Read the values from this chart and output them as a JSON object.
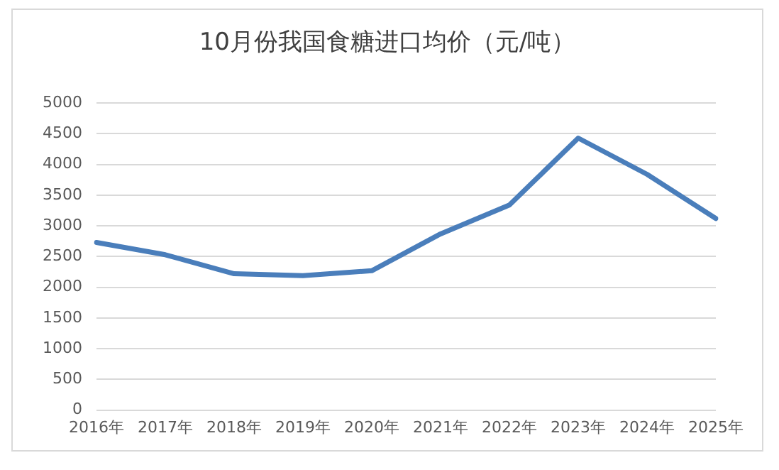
{
  "chart_data": {
    "type": "line",
    "title": "10月份我国食糖进口均价（元/吨）",
    "categories": [
      "2016年",
      "2017年",
      "2018年",
      "2019年",
      "2020年",
      "2021年",
      "2022年",
      "2023年",
      "2024年",
      "2025年"
    ],
    "series": [
      {
        "color": "#4a7ebb",
        "values": [
          2730,
          2530,
          2220,
          2190,
          2270,
          2870,
          3340,
          4430,
          3840,
          3120
        ]
      }
    ],
    "ylim": [
      0,
      5000
    ],
    "yticks": [
      0,
      500,
      1000,
      1500,
      2000,
      2500,
      3000,
      3500,
      4000,
      4500,
      5000
    ],
    "grid": "y",
    "legend": false,
    "marker": "none",
    "line_style": "solid"
  }
}
